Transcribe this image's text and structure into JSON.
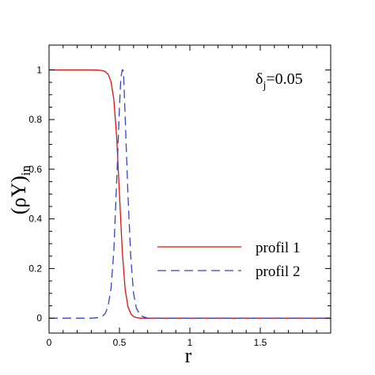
{
  "chart_data": {
    "type": "line",
    "xlabel": "r",
    "ylabel": "(ρY)",
    "ylabel_sub": "in",
    "xlim": [
      0,
      2
    ],
    "ylim": [
      -0.06,
      1.1
    ],
    "x_ticks": [
      0,
      0.5,
      1,
      1.5
    ],
    "x_tick_labels": [
      "0",
      "0.5",
      "1",
      "1.5"
    ],
    "y_ticks": [
      0,
      0.2,
      0.4,
      0.6,
      0.8,
      1
    ],
    "y_tick_labels": [
      "0",
      "0.2",
      "0.4",
      "0.6",
      "0.8",
      "1"
    ],
    "annotation": {
      "base": "δ",
      "sub": "j",
      "rest": "=0.05"
    },
    "grid": false,
    "legend_position": "lower-right",
    "series": [
      {
        "name": "profil 1",
        "color": "#dd1111",
        "style": "solid",
        "x": [
          0,
          0.3,
          0.35,
          0.38,
          0.4,
          0.42,
          0.44,
          0.46,
          0.48,
          0.5,
          0.52,
          0.54,
          0.56,
          0.58,
          0.6,
          0.62,
          0.65,
          0.7,
          0.75,
          0.8,
          1.0,
          1.5,
          2.0
        ],
        "y": [
          1.0,
          1.0,
          0.999,
          0.997,
          0.993,
          0.982,
          0.953,
          0.881,
          0.731,
          0.5,
          0.269,
          0.119,
          0.047,
          0.018,
          0.007,
          0.002,
          0.0,
          0.0,
          0.0,
          0.0,
          0.0,
          0.0,
          0.0
        ]
      },
      {
        "name": "profil 2",
        "color": "#3344cc",
        "style": "dashed",
        "x": [
          0,
          0.3,
          0.35,
          0.38,
          0.4,
          0.42,
          0.44,
          0.46,
          0.48,
          0.5,
          0.51,
          0.52,
          0.525,
          0.53,
          0.54,
          0.56,
          0.58,
          0.6,
          0.62,
          0.65,
          0.7,
          0.75,
          0.8,
          1.0,
          1.5,
          2.0
        ],
        "y": [
          0.0,
          0.0,
          0.002,
          0.008,
          0.02,
          0.05,
          0.12,
          0.27,
          0.55,
          0.85,
          0.97,
          1.0,
          1.0,
          0.97,
          0.82,
          0.5,
          0.25,
          0.1,
          0.04,
          0.01,
          0.0,
          0.0,
          0.0,
          0.0,
          0.0,
          0.0
        ]
      }
    ]
  }
}
